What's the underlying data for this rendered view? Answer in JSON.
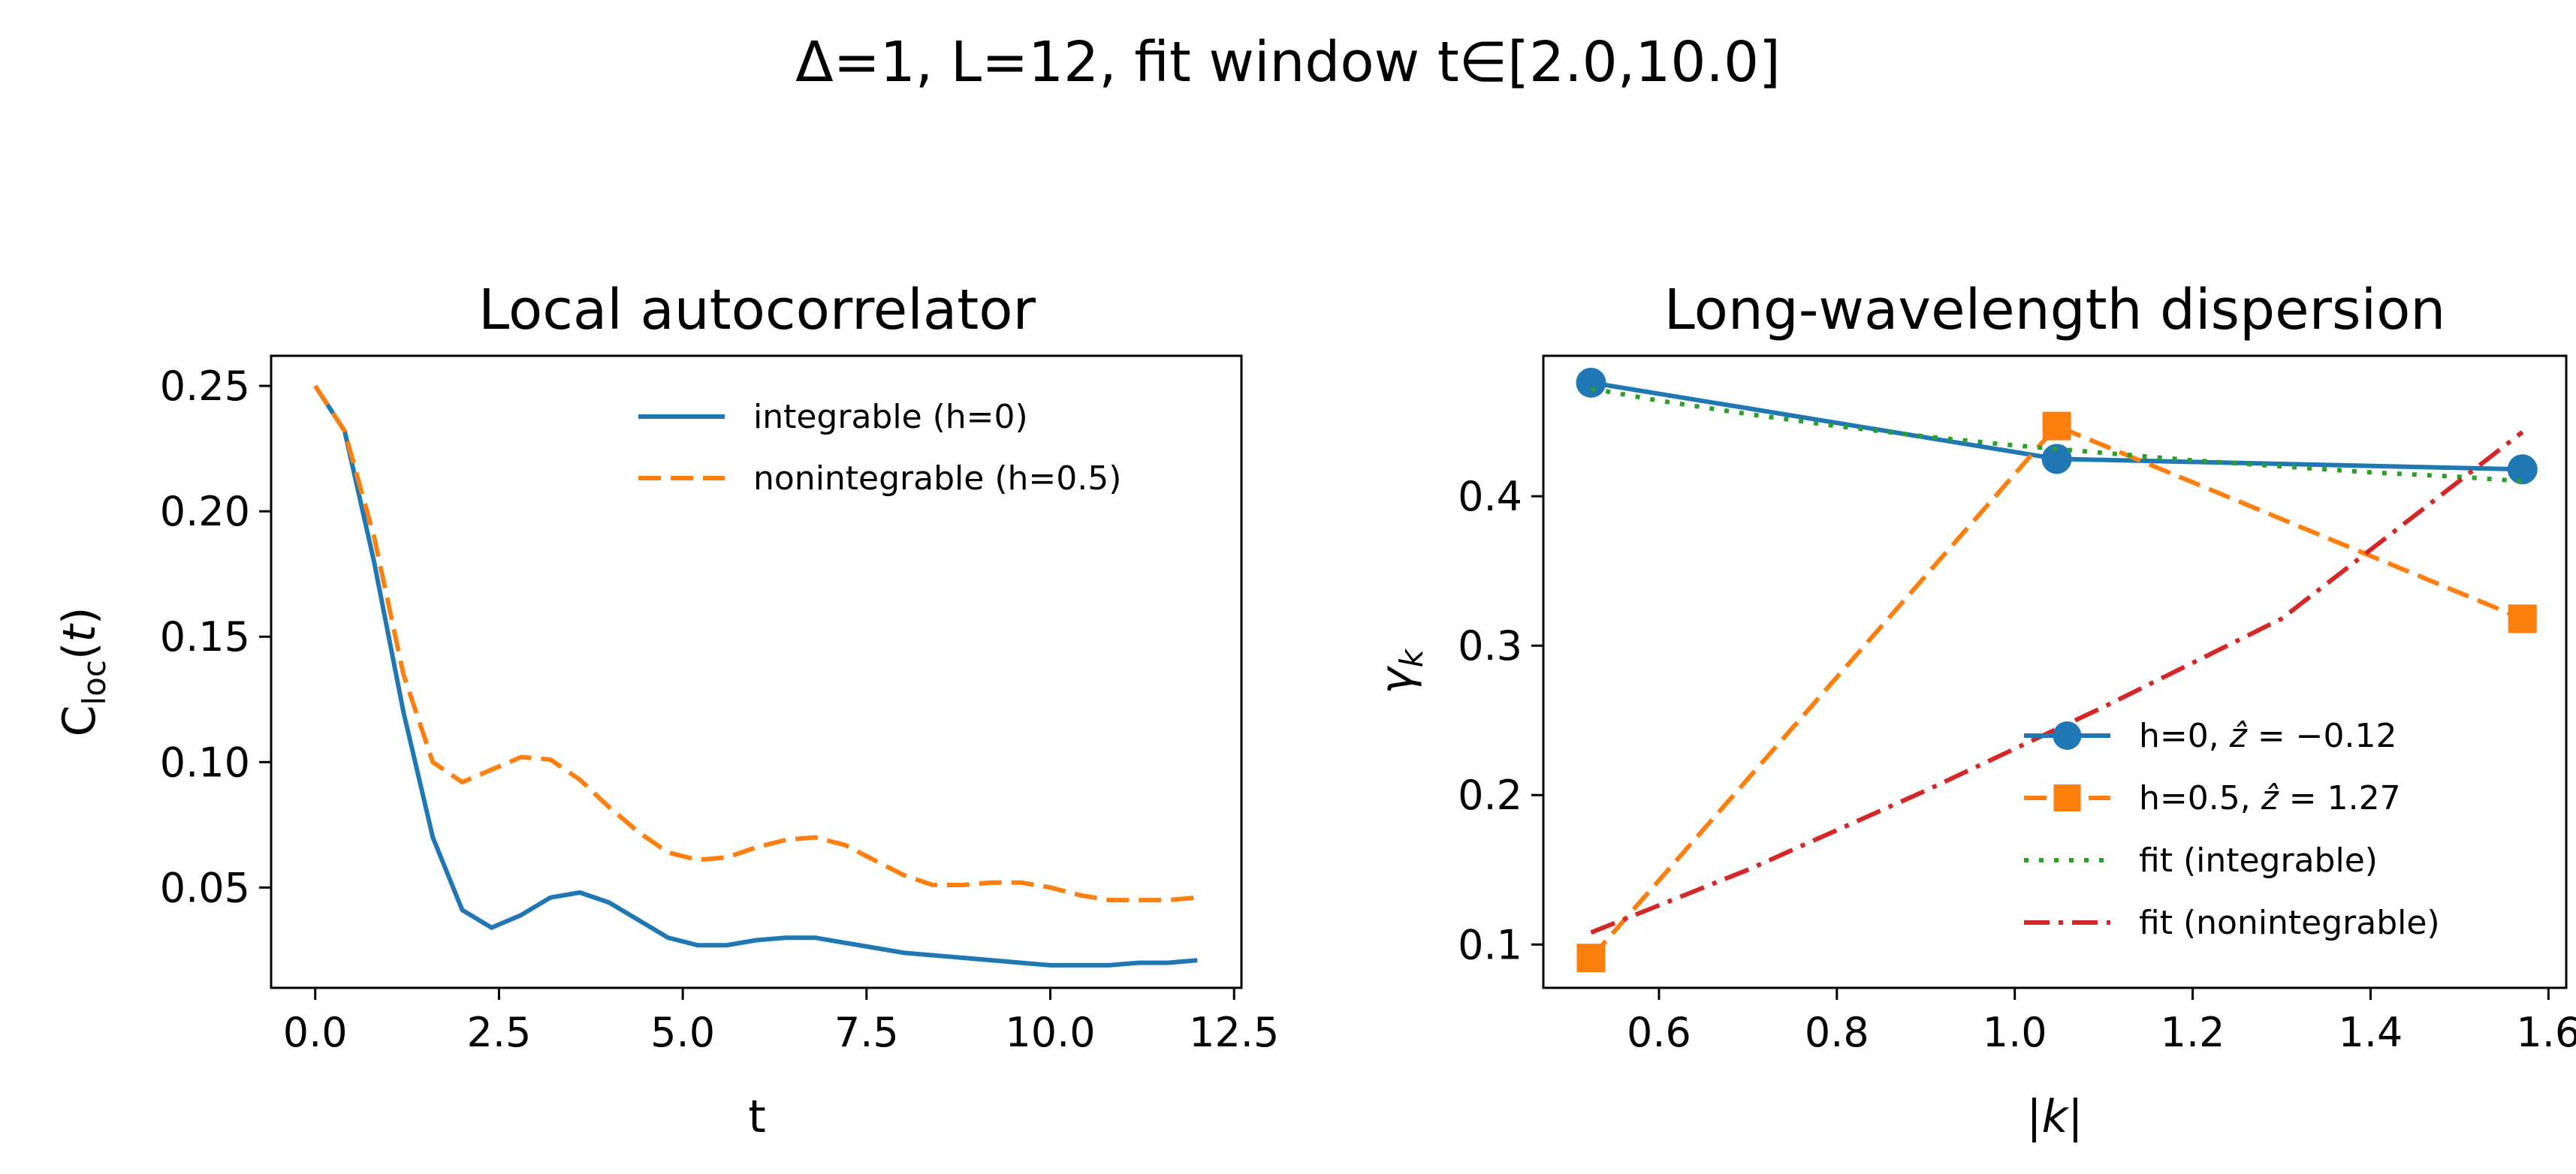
{
  "suptitle": "Δ=1, L=12, fit window t∈[2.0,10.0]",
  "chart_data": [
    {
      "type": "line",
      "title": "Local autocorrelator",
      "xlabel": "t",
      "ylabel": "C_loc(t)",
      "xlim": [
        -0.6,
        12.6
      ],
      "ylim": [
        0.01,
        0.262
      ],
      "xticks": [
        0.0,
        2.5,
        5.0,
        7.5,
        10.0,
        12.5
      ],
      "xtick_labels": [
        "0.0",
        "2.5",
        "5.0",
        "7.5",
        "10.0",
        "12.5"
      ],
      "yticks": [
        0.05,
        0.1,
        0.15,
        0.2,
        0.25
      ],
      "ytick_labels": [
        "0.05",
        "0.10",
        "0.15",
        "0.20",
        "0.25"
      ],
      "grid": false,
      "legend_position": "top-right",
      "series": [
        {
          "name": "integrable (h=0)",
          "color": "#1f77b4",
          "style": "solid",
          "x": [
            0.0,
            0.4,
            0.8,
            1.2,
            1.6,
            2.0,
            2.4,
            2.8,
            3.2,
            3.6,
            4.0,
            4.4,
            4.8,
            5.2,
            5.6,
            6.0,
            6.4,
            6.8,
            7.2,
            7.6,
            8.0,
            8.4,
            8.8,
            9.2,
            9.6,
            10.0,
            10.4,
            10.8,
            11.2,
            11.6,
            12.0
          ],
          "y": [
            0.25,
            0.232,
            0.18,
            0.12,
            0.07,
            0.041,
            0.034,
            0.039,
            0.046,
            0.048,
            0.044,
            0.037,
            0.03,
            0.027,
            0.027,
            0.029,
            0.03,
            0.03,
            0.028,
            0.026,
            0.024,
            0.023,
            0.022,
            0.021,
            0.02,
            0.019,
            0.019,
            0.019,
            0.02,
            0.02,
            0.021
          ]
        },
        {
          "name": "nonintegrable (h=0.5)",
          "color": "#ff7f0e",
          "style": "dashed",
          "x": [
            0.0,
            0.4,
            0.8,
            1.2,
            1.6,
            2.0,
            2.4,
            2.8,
            3.2,
            3.6,
            4.0,
            4.4,
            4.8,
            5.2,
            5.6,
            6.0,
            6.4,
            6.8,
            7.2,
            7.6,
            8.0,
            8.4,
            8.8,
            9.2,
            9.6,
            10.0,
            10.4,
            10.8,
            11.2,
            11.6,
            12.0
          ],
          "y": [
            0.25,
            0.232,
            0.19,
            0.135,
            0.1,
            0.092,
            0.097,
            0.102,
            0.101,
            0.093,
            0.082,
            0.072,
            0.064,
            0.061,
            0.062,
            0.066,
            0.069,
            0.07,
            0.067,
            0.061,
            0.055,
            0.051,
            0.051,
            0.052,
            0.052,
            0.05,
            0.047,
            0.045,
            0.045,
            0.045,
            0.046
          ]
        }
      ]
    },
    {
      "type": "line",
      "title": "Long-wavelength dispersion",
      "xlabel": "|k|",
      "ylabel": "γ_k",
      "xlim": [
        0.47,
        1.62
      ],
      "ylim": [
        0.071,
        0.494
      ],
      "xticks": [
        0.6,
        0.8,
        1.0,
        1.2,
        1.4,
        1.6
      ],
      "xtick_labels": [
        "0.6",
        "0.8",
        "1.0",
        "1.2",
        "1.4",
        "1.6"
      ],
      "yticks": [
        0.1,
        0.2,
        0.3,
        0.4
      ],
      "ytick_labels": [
        "0.1",
        "0.2",
        "0.3",
        "0.4"
      ],
      "grid": false,
      "legend_position": "lower-right",
      "series": [
        {
          "name": "h=0, ẑ = −0.12",
          "label_parts": [
            "h=0, ",
            "ẑ",
            " = −0.12"
          ],
          "color": "#1f77b4",
          "style": "solid",
          "marker": "circle",
          "x": [
            0.5236,
            1.0472,
            1.5708
          ],
          "y": [
            0.476,
            0.425,
            0.418
          ]
        },
        {
          "name": "h=0.5, ẑ = 1.27",
          "label_parts": [
            "h=0.5, ",
            "ẑ",
            " = 1.27"
          ],
          "color": "#ff7f0e",
          "style": "dashed",
          "marker": "square",
          "x": [
            0.5236,
            1.0472,
            1.5708
          ],
          "y": [
            0.091,
            0.447,
            0.318
          ]
        },
        {
          "name": "fit (integrable)",
          "color": "#2ca02c",
          "style": "dotted",
          "x": [
            0.5236,
            0.6,
            0.7,
            0.8,
            0.9,
            1.0,
            1.1,
            1.2,
            1.3,
            1.4,
            1.5,
            1.5708
          ],
          "y": [
            0.472,
            0.464,
            0.455,
            0.447,
            0.44,
            0.434,
            0.429,
            0.424,
            0.42,
            0.416,
            0.413,
            0.41
          ]
        },
        {
          "name": "fit (nonintegrable)",
          "color": "#d62728",
          "style": "dashdot",
          "x": [
            0.5236,
            0.7,
            0.9,
            1.1,
            1.3,
            1.5708
          ],
          "y": [
            0.108,
            0.15,
            0.203,
            0.259,
            0.318,
            0.443
          ]
        }
      ]
    }
  ]
}
